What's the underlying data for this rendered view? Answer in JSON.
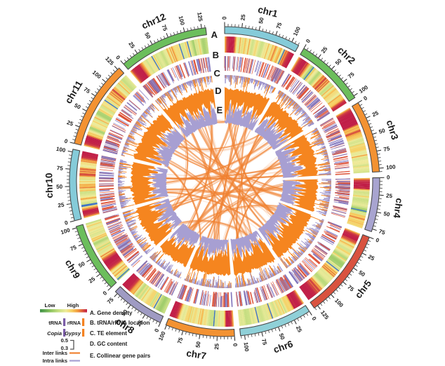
{
  "figure": {
    "description": "Circos plot of genome features across 12 chromosomes with tracks A-E and collinear gene pair links"
  },
  "chart_data": {
    "type": "circos",
    "tick_major_interval": 25,
    "tick_minor_interval": 5,
    "chromosomes": [
      {
        "name": "chr1",
        "length": 111,
        "color": "#85cbd9",
        "hotspots": [
          [
            5,
            10,
            1
          ],
          [
            106,
            6,
            0.85
          ]
        ]
      },
      {
        "name": "chr2",
        "length": 103,
        "color": "#6cbe5c",
        "hotspots": [
          [
            4,
            9,
            1
          ],
          [
            99,
            5,
            0.6
          ]
        ]
      },
      {
        "name": "chr3",
        "length": 105,
        "color": "#f39232",
        "hotspots": [
          [
            12,
            14,
            1
          ]
        ]
      },
      {
        "name": "chr4",
        "length": 79,
        "color": "#a8a4d0",
        "hotspots": [
          [
            6,
            9,
            0.95
          ]
        ]
      },
      {
        "name": "chr5",
        "length": 131,
        "color": "#d9523f",
        "hotspots": [
          [
            5,
            8,
            1
          ],
          [
            122,
            10,
            0.95
          ]
        ]
      },
      {
        "name": "chr6",
        "length": 106,
        "color": "#8fd0d8",
        "hotspots": [
          [
            6,
            7,
            0.85
          ]
        ]
      },
      {
        "name": "chr7",
        "length": 101,
        "color": "#f39232",
        "hotspots": [
          [
            5,
            7,
            0.9
          ],
          [
            95,
            7,
            0.9
          ]
        ]
      },
      {
        "name": "chr8",
        "length": 79,
        "color": "#9f9bc3",
        "hotspots": [
          [
            71,
            9,
            0.95
          ]
        ]
      },
      {
        "name": "chr9",
        "length": 102,
        "color": "#6cbe5c",
        "hotspots": [
          [
            28,
            9,
            1
          ]
        ]
      },
      {
        "name": "chr10",
        "length": 104,
        "color": "#85cbd9",
        "hotspots": [
          [
            5,
            7,
            0.95
          ],
          [
            99,
            7,
            0.85
          ]
        ]
      },
      {
        "name": "chr11",
        "length": 128,
        "color": "#f39232",
        "hotspots": [
          [
            7,
            9,
            1
          ]
        ]
      },
      {
        "name": "chr12",
        "length": 131,
        "color": "#6cbe5c",
        "hotspots": [
          [
            7,
            9,
            1
          ]
        ]
      }
    ],
    "tracks": [
      {
        "id": "A",
        "label": "Gene density",
        "type": "heatmap",
        "scale": [
          "Low",
          "High"
        ]
      },
      {
        "id": "B",
        "label": "tRNA/rRNA location",
        "type": "tiles",
        "legend": [
          "tRNA",
          "rRNA"
        ]
      },
      {
        "id": "C",
        "label": "TE element",
        "type": "histogram",
        "legend": [
          "Copia",
          "Gypsy"
        ]
      },
      {
        "id": "D",
        "label": "GC content",
        "type": "area",
        "range": [
          0.3,
          0.5
        ]
      },
      {
        "id": "E",
        "label": "Collinear gene pairs",
        "type": "links",
        "legend": [
          "Inter links",
          "Intra links"
        ]
      }
    ],
    "inter_links": [
      [
        "chr1",
        18,
        "chr5",
        65,
        5
      ],
      [
        "chr1",
        52,
        "chr7",
        48,
        3
      ],
      [
        "chr1",
        82,
        "chr6",
        38,
        2
      ],
      [
        "chr1",
        34,
        "chr9",
        55,
        3
      ],
      [
        "chr2",
        28,
        "chr7",
        72,
        4
      ],
      [
        "chr2",
        66,
        "chr10",
        48,
        3
      ],
      [
        "chr2",
        12,
        "chr6",
        80,
        2
      ],
      [
        "chr3",
        38,
        "chr8",
        40,
        4
      ],
      [
        "chr3",
        70,
        "chr10",
        78,
        3
      ],
      [
        "chr3",
        18,
        "chr7",
        22,
        2
      ],
      [
        "chr4",
        30,
        "chr9",
        68,
        3
      ],
      [
        "chr4",
        58,
        "chr11",
        58,
        4
      ],
      [
        "chr4",
        14,
        "chr8",
        16,
        2
      ],
      [
        "chr5",
        28,
        "chr10",
        26,
        3
      ],
      [
        "chr5",
        98,
        "chr12",
        62,
        4
      ],
      [
        "chr5",
        55,
        "chr11",
        98,
        2
      ],
      [
        "chr6",
        28,
        "chr11",
        32,
        3
      ],
      [
        "chr6",
        68,
        "chr12",
        92,
        3
      ],
      [
        "chr6",
        14,
        "chr9",
        20,
        2
      ],
      [
        "chr7",
        40,
        "chr12",
        30,
        4
      ],
      [
        "chr7",
        84,
        "chr11",
        14,
        2
      ],
      [
        "chr8",
        52,
        "chr12",
        112,
        3
      ],
      [
        "chr8",
        30,
        "chr1",
        95,
        3
      ],
      [
        "chr9",
        78,
        "chr2",
        88,
        3
      ],
      [
        "chr9",
        40,
        "chr12",
        12,
        2
      ],
      [
        "chr10",
        68,
        "chr3",
        92,
        3
      ],
      [
        "chr10",
        14,
        "chr5",
        118,
        2
      ],
      [
        "chr11",
        78,
        "chr2",
        48,
        3
      ],
      [
        "chr11",
        118,
        "chr4",
        44,
        2
      ],
      [
        "chr12",
        74,
        "chr1",
        64,
        3
      ],
      [
        "chr5",
        10,
        "chr8",
        62,
        2
      ],
      [
        "chr3",
        55,
        "chr6",
        92,
        2
      ]
    ],
    "intra_links": [
      [
        "chr1",
        14,
        100,
        2
      ],
      [
        "chr2",
        20,
        84,
        2
      ],
      [
        "chr3",
        16,
        88,
        2
      ],
      [
        "chr4",
        10,
        70,
        3
      ],
      [
        "chr5",
        12,
        122,
        3
      ],
      [
        "chr6",
        24,
        94,
        2
      ],
      [
        "chr7",
        12,
        88,
        3
      ],
      [
        "chr8",
        8,
        66,
        2
      ],
      [
        "chr9",
        16,
        84,
        2
      ],
      [
        "chr10",
        18,
        94,
        3
      ],
      [
        "chr11",
        22,
        112,
        2
      ],
      [
        "chr12",
        26,
        116,
        3
      ]
    ]
  },
  "colors": {
    "background": "#ffffff",
    "ideogram_border": "#4a4a4a",
    "tick": "#222222",
    "heat_stops": [
      [
        0,
        "#3c8f44"
      ],
      [
        0.22,
        "#8cc45f"
      ],
      [
        0.4,
        "#c8df82"
      ],
      [
        0.55,
        "#eeeb9b"
      ],
      [
        0.68,
        "#f6cf61"
      ],
      [
        0.8,
        "#f29b3d"
      ],
      [
        0.9,
        "#dc5b3c"
      ],
      [
        1,
        "#c01c46"
      ]
    ],
    "heat_blue": "#3f74c4",
    "trna_line": "#8076bf",
    "rrna_line": "#dd4f33",
    "copia": "#9d93cb",
    "gypsy": "#f5851f",
    "gc_area": "#a79fd2",
    "link_inter": "#f08232",
    "link_intra": "#a79fd2"
  },
  "legend": {
    "low": "Low",
    "high": "High",
    "a_label": "A. Gene density",
    "trna": "tRNA",
    "rrna": "rRNA",
    "b_label": "B. tRNA/rRNA location",
    "copia": "Copia",
    "gypsy": "Gypsy",
    "c_label": "C. TE element",
    "gc_high": "0.5",
    "gc_low": "0.3",
    "d_label": "D. GC content",
    "inter": "Inter links",
    "intra": "Intra links",
    "e_label": "E. Collinear gene pairs",
    "purple": "#7b5ca8",
    "orange": "#f58220"
  }
}
